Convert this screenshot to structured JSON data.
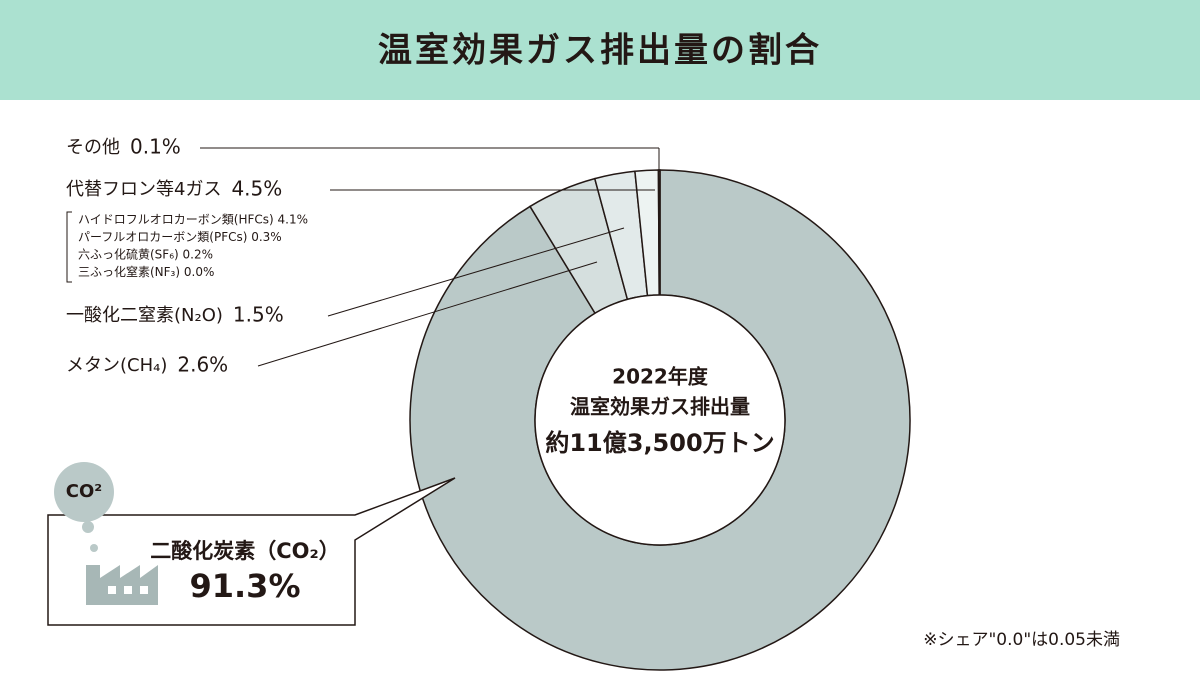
{
  "chart_data": {
    "type": "donut",
    "title": "温室効果ガス排出量の割合",
    "center_lines": [
      "2022年度",
      "温室効果ガス排出量",
      "約11億3,500万トン"
    ],
    "categories": [
      "二酸化炭素（CO₂）",
      "代替フロン等4ガス",
      "メタン(CH₄)",
      "一酸化二窒素(N₂O)",
      "その他"
    ],
    "values": [
      91.3,
      4.5,
      2.6,
      1.5,
      0.1
    ],
    "value_labels": [
      "91.3%",
      "4.5%",
      "2.6%",
      "1.5%",
      "0.1%"
    ],
    "colors": [
      "#bac9c8",
      "#d5dfde",
      "#e2eaea",
      "#edf3f2",
      "#f5f8f8"
    ],
    "breakdown": [
      "ハイドロフルオロカーボン類(HFCs) 4.1%",
      "パーフルオロカーボン類(PFCs) 0.3%",
      "六ふっ化硫黄(SF₆) 0.2%",
      "三ふっ化窒素(NF₃) 0.0%"
    ],
    "icon_label": "CO²",
    "footnote": "※シェア\"0.0\"は0.05未満"
  }
}
